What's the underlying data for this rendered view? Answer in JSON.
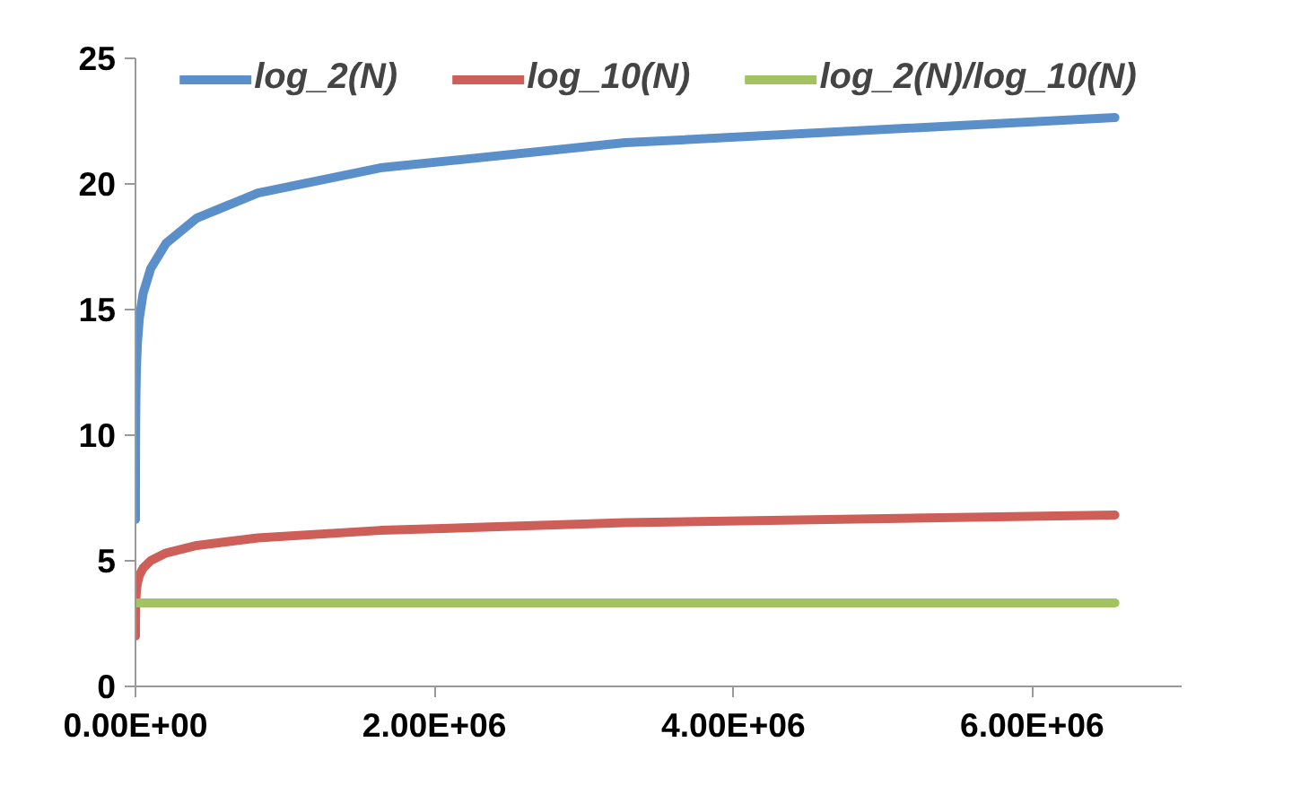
{
  "chart_data": {
    "type": "line",
    "x": [
      100,
      200,
      400,
      800,
      1600,
      3200,
      6400,
      12800,
      25600,
      51200,
      102400,
      204800,
      409600,
      819200,
      1638400,
      3276800,
      6553600
    ],
    "series": [
      {
        "name": "log_2(N)",
        "color": "#5b8fc9",
        "values": [
          6.64,
          7.64,
          8.64,
          9.64,
          10.64,
          11.64,
          12.64,
          13.64,
          14.64,
          15.64,
          16.64,
          17.64,
          18.64,
          19.64,
          20.64,
          21.64,
          22.64
        ]
      },
      {
        "name": "log_10(N)",
        "color": "#cd5f58",
        "values": [
          2.0,
          2.3,
          2.6,
          2.9,
          3.2,
          3.51,
          3.81,
          4.11,
          4.41,
          4.71,
          5.01,
          5.31,
          5.61,
          5.91,
          6.21,
          6.52,
          6.82
        ]
      },
      {
        "name": "log_2(N)/log_10(N)",
        "color": "#a3c262",
        "values": [
          3.32,
          3.32,
          3.32,
          3.32,
          3.32,
          3.32,
          3.32,
          3.32,
          3.32,
          3.32,
          3.32,
          3.32,
          3.32,
          3.32,
          3.32,
          3.32,
          3.32
        ]
      }
    ],
    "xlim": [
      0,
      7000000
    ],
    "xticks": [
      {
        "value": 0,
        "label": "0.00E+00"
      },
      {
        "value": 2000000,
        "label": "2.00E+06"
      },
      {
        "value": 4000000,
        "label": "4.00E+06"
      },
      {
        "value": 6000000,
        "label": "6.00E+06"
      }
    ],
    "ylim": [
      0,
      25
    ],
    "yticks": [
      0,
      5,
      10,
      15,
      20,
      25
    ],
    "grid": false,
    "legend": "top",
    "marker": "none",
    "line_style": "solid"
  }
}
